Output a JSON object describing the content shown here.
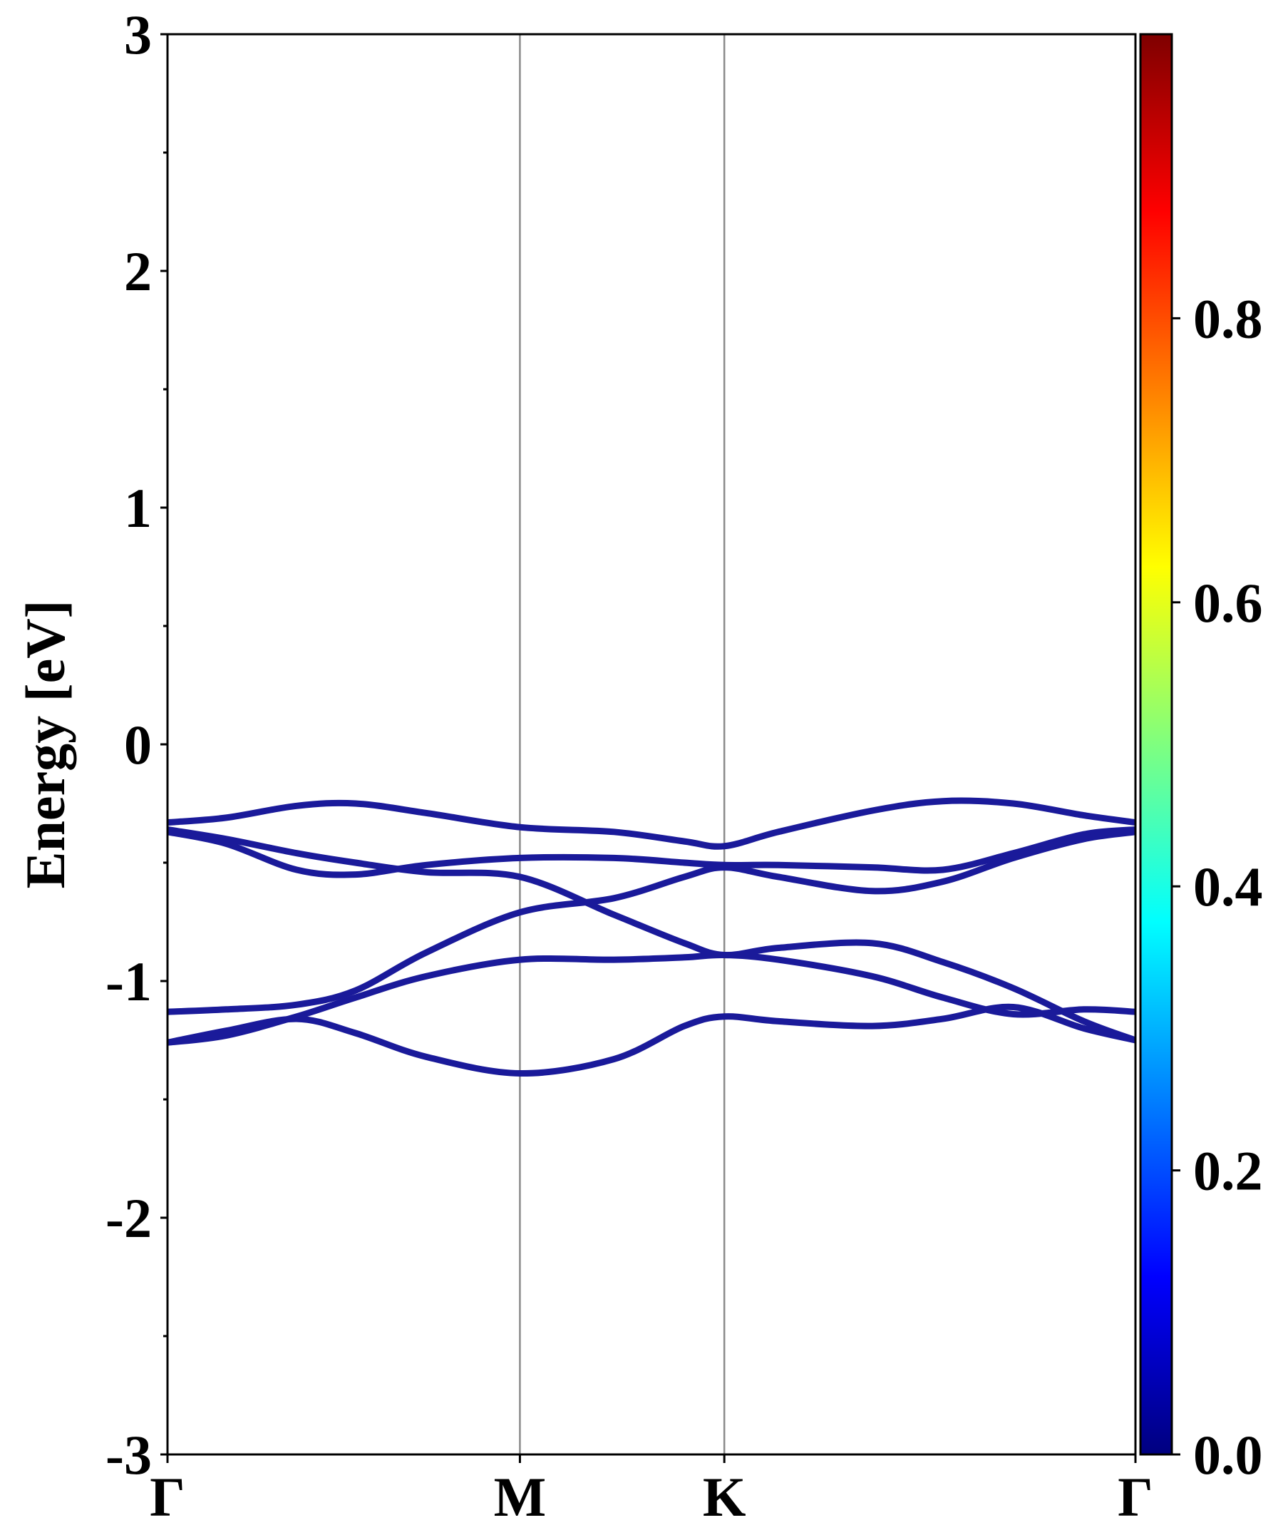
{
  "chart_data": {
    "type": "line",
    "title": "",
    "xlabel": "",
    "ylabel": "Energy [eV]",
    "ylim": [
      -3,
      3
    ],
    "yticks": [
      "-3",
      "-2",
      "-1",
      "0",
      "1",
      "2",
      "3"
    ],
    "xlim": [
      0,
      4.12
    ],
    "high_symmetry_points": [
      {
        "label": "Γ",
        "x": 0
      },
      {
        "label": "M",
        "x": 1.5
      },
      {
        "label": "K",
        "x": 2.37
      },
      {
        "label": "Γ",
        "x": 4.12
      }
    ],
    "vertical_lines": [
      1.5,
      2.37
    ],
    "grid": false,
    "legend": "none",
    "line_color": "#1a1a9a",
    "series": [
      {
        "x": [
          0,
          0.25,
          0.55,
          0.8,
          1.1,
          1.5,
          1.9,
          2.2,
          2.37,
          2.6,
          3.0,
          3.3,
          3.6,
          3.9,
          4.12
        ],
        "y": [
          -0.33,
          -0.31,
          -0.26,
          -0.25,
          -0.29,
          -0.35,
          -0.37,
          -0.41,
          -0.43,
          -0.37,
          -0.28,
          -0.24,
          -0.25,
          -0.3,
          -0.33
        ]
      },
      {
        "x": [
          0,
          0.25,
          0.55,
          0.8,
          1.1,
          1.5,
          1.9,
          2.2,
          2.37,
          2.6,
          3.0,
          3.3,
          3.6,
          3.9,
          4.12
        ],
        "y": [
          -0.36,
          -0.4,
          -0.46,
          -0.5,
          -0.54,
          -0.56,
          -0.72,
          -0.84,
          -0.89,
          -0.86,
          -0.84,
          -0.92,
          -1.03,
          -1.17,
          -1.25
        ]
      },
      {
        "x": [
          0,
          0.25,
          0.55,
          0.8,
          1.1,
          1.5,
          1.9,
          2.2,
          2.37,
          2.6,
          3.0,
          3.3,
          3.6,
          3.9,
          4.12
        ],
        "y": [
          -0.37,
          -0.42,
          -0.53,
          -0.55,
          -0.51,
          -0.48,
          -0.48,
          -0.5,
          -0.51,
          -0.51,
          -0.52,
          -0.53,
          -0.46,
          -0.38,
          -0.36
        ]
      },
      {
        "x": [
          0,
          0.25,
          0.55,
          0.8,
          1.1,
          1.5,
          1.9,
          2.2,
          2.37,
          2.6,
          3.0,
          3.3,
          3.6,
          3.9,
          4.12
        ],
        "y": [
          -1.13,
          -1.12,
          -1.1,
          -1.04,
          -0.88,
          -0.71,
          -0.65,
          -0.56,
          -0.52,
          -0.56,
          -0.62,
          -0.58,
          -0.48,
          -0.4,
          -0.37
        ]
      },
      {
        "x": [
          0,
          0.25,
          0.55,
          0.8,
          1.1,
          1.5,
          1.9,
          2.2,
          2.37,
          2.6,
          3.0,
          3.3,
          3.6,
          3.9,
          4.12
        ],
        "y": [
          -1.26,
          -1.23,
          -1.15,
          -1.07,
          -0.98,
          -0.91,
          -0.91,
          -0.9,
          -0.89,
          -0.91,
          -0.98,
          -1.07,
          -1.14,
          -1.12,
          -1.13
        ]
      },
      {
        "x": [
          0,
          0.25,
          0.55,
          0.8,
          1.1,
          1.5,
          1.9,
          2.2,
          2.37,
          2.6,
          3.0,
          3.3,
          3.6,
          3.9,
          4.12
        ],
        "y": [
          -1.26,
          -1.21,
          -1.16,
          -1.22,
          -1.32,
          -1.39,
          -1.33,
          -1.19,
          -1.15,
          -1.17,
          -1.19,
          -1.16,
          -1.11,
          -1.2,
          -1.25
        ]
      }
    ],
    "colorbar": {
      "range": [
        0,
        1
      ],
      "tick_values": [
        0,
        0.2,
        0.4,
        0.6,
        0.8
      ],
      "tick_labels": [
        "0.0",
        "0.2",
        "0.4",
        "0.6",
        "0.8"
      ],
      "colormap": [
        "#00007f",
        "#0000ff",
        "#007fff",
        "#00ffff",
        "#7fff7f",
        "#ffff00",
        "#ff7f00",
        "#ff0000",
        "#7f0000"
      ]
    }
  }
}
